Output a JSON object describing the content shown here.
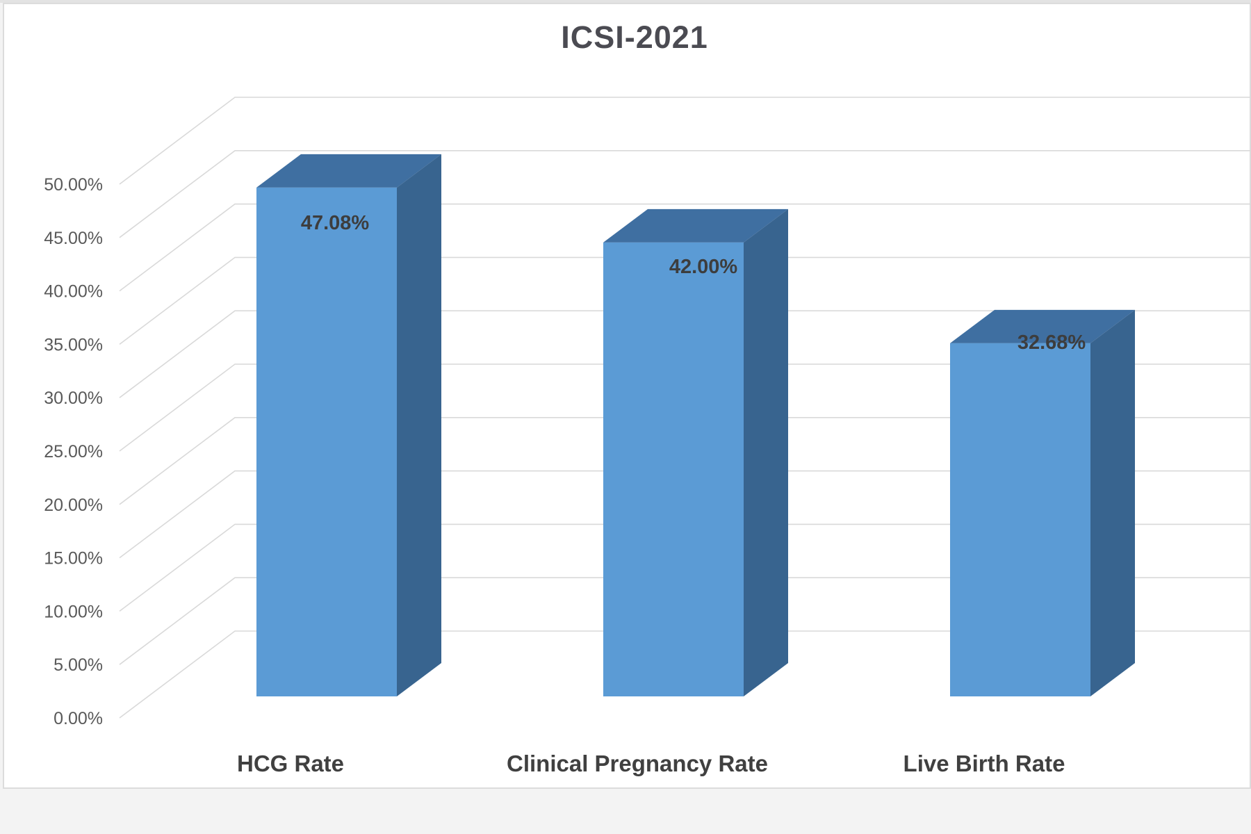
{
  "page": {
    "background": "#f3f3f3",
    "frame_border": "#dcdcdc",
    "frame_background": "#ffffff"
  },
  "chart_data": {
    "type": "bar",
    "variant": "3d-column",
    "title": "ICSI-2021",
    "categories": [
      "HCG Rate",
      "Clinical Pregnancy Rate",
      "Live Birth Rate"
    ],
    "values": [
      47.08,
      42.0,
      32.68
    ],
    "data_labels": [
      "47.08%",
      "42.00%",
      "32.68%"
    ],
    "yticks": [
      "0.00%",
      "5.00%",
      "10.00%",
      "15.00%",
      "20.00%",
      "25.00%",
      "30.00%",
      "35.00%",
      "40.00%",
      "45.00%",
      "50.00%"
    ],
    "ylim": [
      0,
      50
    ],
    "ytick_step": 5,
    "xlabel": "",
    "ylabel": "",
    "grid": true,
    "legend": "none",
    "colors": {
      "bar_front": "#5b9bd5",
      "bar_top": "#3f6fa1",
      "bar_side": "#38648f",
      "gridline": "#d9d9d9",
      "tick_text": "#595959",
      "label_text": "#404040",
      "data_label_text": "#3d3d3d",
      "title_text": "#4b4b52"
    }
  }
}
